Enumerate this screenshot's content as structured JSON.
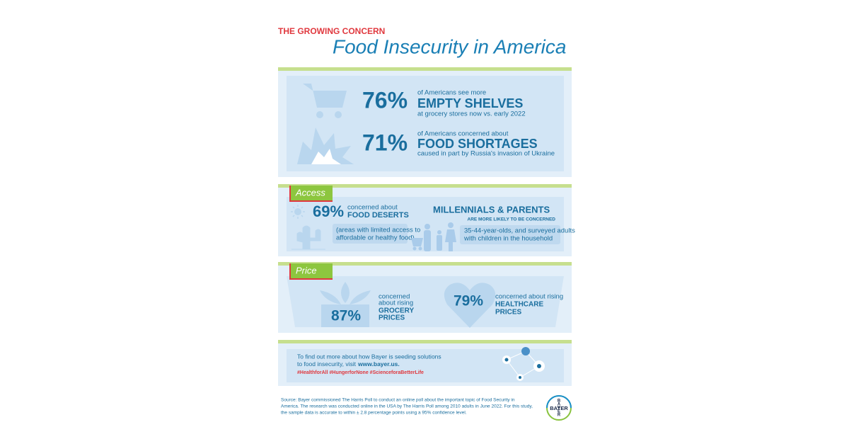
{
  "header": {
    "kicker": "THE GROWING CONCERN",
    "title": "Food Insecurity in America"
  },
  "stats": [
    {
      "percent": "76%",
      "lead": "of Americans see more",
      "headline": "EMPTY SHELVES",
      "detail": "at grocery stores now vs. early 2022"
    },
    {
      "percent": "71%",
      "lead": "of Americans concerned about",
      "headline": "FOOD SHORTAGES",
      "detail": "caused in part by Russia's invasion of Ukraine"
    }
  ],
  "access": {
    "label": "Access",
    "percent": "69%",
    "lead": "concerned about",
    "headline": "FOOD DESERTS",
    "note_lines": [
      "(areas with limited access to",
      "affordable or healthy food)"
    ],
    "group_title": "MILLENNIALS & PARENTS",
    "group_subtitle": "ARE MORE LIKELY TO BE CONCERNED",
    "group_note_lines": [
      "35-44-year-olds, and surveyed adults",
      "with children in the household"
    ]
  },
  "price": {
    "label": "Price",
    "items": [
      {
        "percent": "87%",
        "lines": [
          "concerned",
          "about rising"
        ],
        "headline_lines": [
          "GROCERY",
          "PRICES"
        ]
      },
      {
        "percent": "79%",
        "lines": [
          "concerned about rising"
        ],
        "headline_lines": [
          "HEALTHCARE",
          "PRICES"
        ]
      }
    ]
  },
  "cta": {
    "lines": [
      "To find out more about how Bayer is seeding solutions",
      "to food insecurity, visit"
    ],
    "url": "www.bayer.us.",
    "hashtags": "#HealthforAll #HungerforNone #ScienceforaBetterLife"
  },
  "source_lines": [
    "Source: Bayer commissioned The Harris Poll to conduct an online poll about the important topic of Food Security in",
    "America. The research was conducted online in the USA by The Harris Poll among 2010 adults in June 2022. For this study,",
    "the sample data is accurate to within ± 2.8 percentage points using a 95% confidence level."
  ],
  "logo": {
    "text": "BAYER"
  }
}
